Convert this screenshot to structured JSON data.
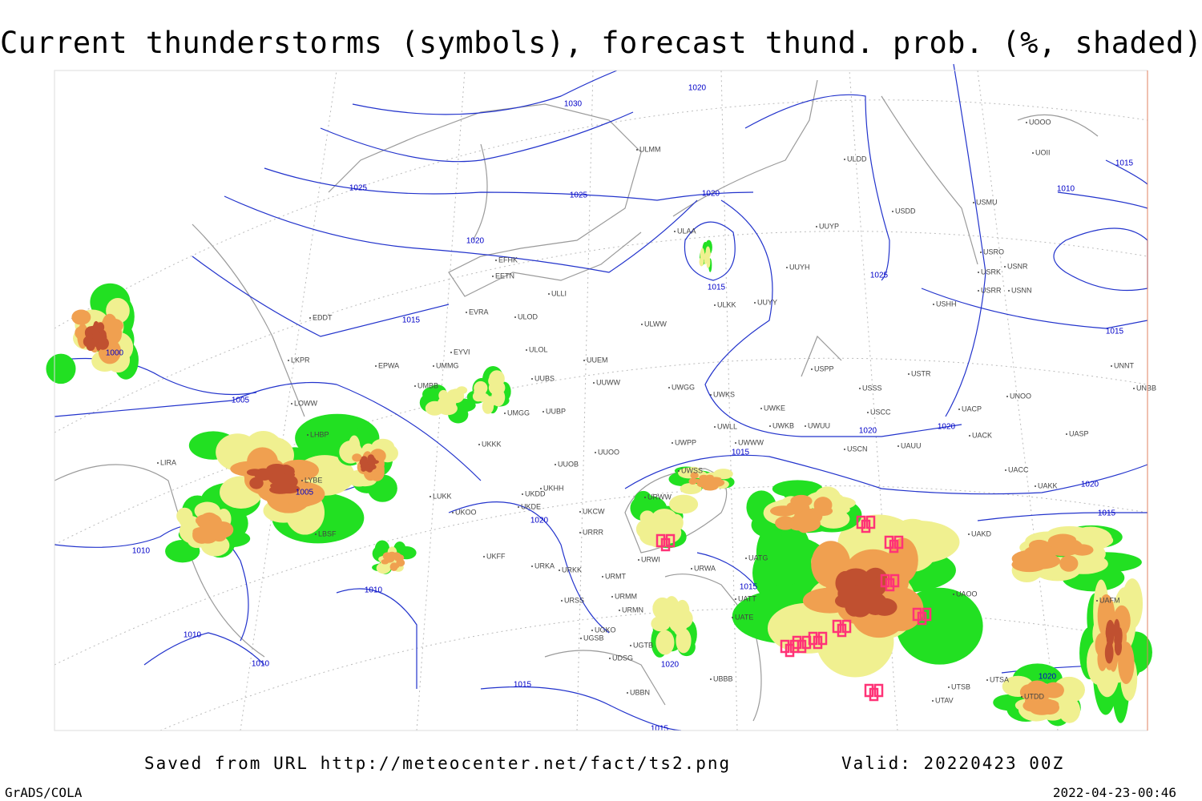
{
  "title": "Current thunderstorms (symbols), forecast thund. prob. (%, shaded)",
  "isobar_labels": [
    "1030",
    "1025",
    "1025",
    "1020",
    "1020",
    "1020",
    "1015",
    "1025",
    "1015",
    "1000",
    "1005",
    "1005",
    "1010",
    "1010",
    "1010",
    "1010",
    "1020",
    "1015",
    "1015",
    "1020",
    "1020",
    "1020",
    "1015",
    "1015",
    "1015",
    "1010",
    "1020",
    "1015",
    "1015",
    "1020"
  ],
  "station_labels": [
    "EFHK",
    "EETN",
    "EVRA",
    "ULOD",
    "ULOL",
    "EPWA",
    "UMMG",
    "UMBB",
    "EYVI",
    "UUBS",
    "UUEM",
    "UUWW",
    "UMGG",
    "UUBP",
    "UKKK",
    "UUOO",
    "UUOB",
    "UKHH",
    "UKDD",
    "UKDE",
    "UKCW",
    "URRR",
    "UKFF",
    "URKA",
    "URKK",
    "URMT",
    "URSS",
    "URMM",
    "URMN",
    "UGKO",
    "UGSB",
    "UGTB",
    "UDSG",
    "UBBB",
    "UBBN",
    "UWGG",
    "UWKS",
    "UWKE",
    "UWKB",
    "UWWW",
    "UWLL",
    "UWUU",
    "UWPP",
    "UWSS",
    "URWW",
    "URWI",
    "URWA",
    "UATG",
    "UATT",
    "UATE",
    "LIRA",
    "LKPR",
    "LOWW",
    "LYBE",
    "LBSF",
    "EDDT",
    "LHBP",
    "LUKK",
    "UKOO",
    "ULLI",
    "ULAA",
    "ULKK",
    "UUYY",
    "UUYH",
    "ULWW",
    "UUYP",
    "ULDD",
    "USPP",
    "USSS",
    "USTR",
    "USCC",
    "USCN",
    "UAUU",
    "UACK",
    "UACP",
    "UASP",
    "UACC",
    "UAKK",
    "UAKD",
    "UAOO",
    "UTSB",
    "UTSA",
    "UTAV",
    "UTDD",
    "UAFM",
    "UNNT",
    "UNBB",
    "UNOO",
    "USDD",
    "USMU",
    "USRO",
    "USRK",
    "USNR",
    "USRR",
    "USNN",
    "USHH",
    "UOOO",
    "UOII",
    "ULMM"
  ],
  "footer": {
    "source": "Saved from URL http://meteocenter.net/fact/ts2.png",
    "valid": "Valid: 20220423 00Z",
    "software": "GrADS/COLA",
    "timestamp": "2022-04-23-00:46"
  }
}
